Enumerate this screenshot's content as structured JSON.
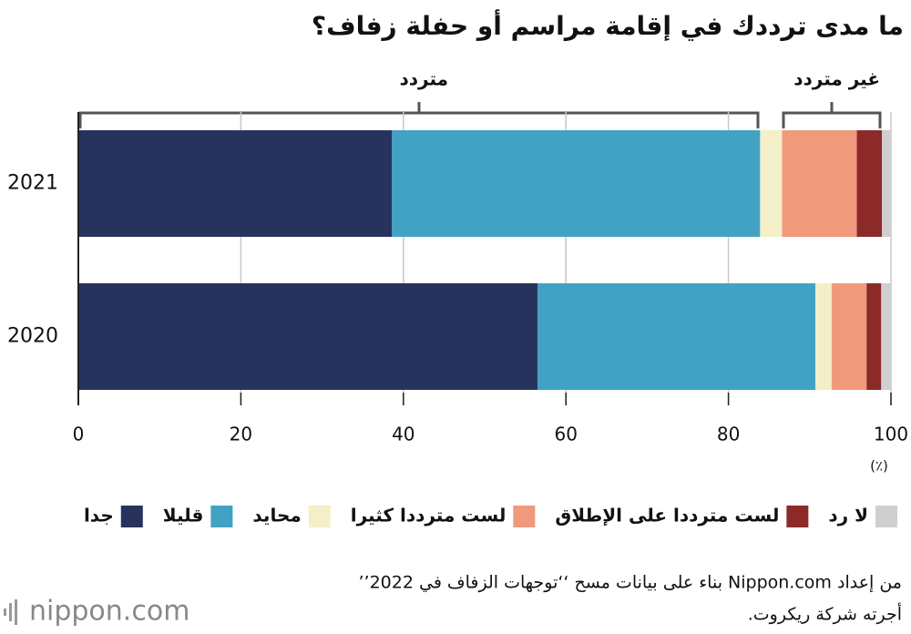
{
  "chart_data": {
    "type": "stacked-bar-horizontal",
    "title": "ما مدى ترددك في إقامة مراسم أو حفلة زفاف؟",
    "annotations": [
      "متردد",
      "غير متردد"
    ],
    "categories": [
      "2021",
      "2020"
    ],
    "series": [
      {
        "name": "جدا",
        "color": "#27335c",
        "values": [
          38.6,
          56.5
        ]
      },
      {
        "name": "قليلا",
        "color": "#42a2c4",
        "values": [
          45.3,
          34.2
        ]
      },
      {
        "name": "محايد",
        "color": "#f3efc8",
        "values": [
          2.7,
          2.0
        ]
      },
      {
        "name": "لست مترددا كثيرا",
        "color": "#f19a7b",
        "values": [
          9.2,
          4.3
        ]
      },
      {
        "name": "لست مترددا على الإطلاق",
        "color": "#8c2a2a",
        "values": [
          3.1,
          1.8
        ]
      },
      {
        "name": "لا رد",
        "color": "#cfcfcf",
        "values": [
          1.1,
          1.2
        ]
      }
    ],
    "xlim": [
      0,
      100
    ],
    "xticks": [
      0,
      20,
      40,
      60,
      80,
      100
    ],
    "grid": true,
    "x_unit": "(٪)",
    "source": [
      "من إعداد Nippon.com بناء على بيانات مسح ‘‘توجهات الزفاف في 2022’’",
      "أجرته شركة ريكروت."
    ],
    "logo": "nippon.com"
  }
}
